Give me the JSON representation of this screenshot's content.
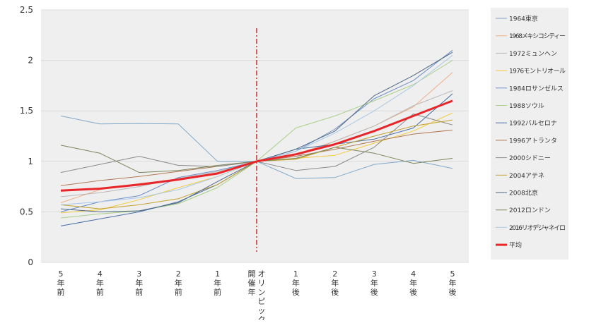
{
  "chart_data": {
    "type": "line",
    "title": "",
    "xlabel": "",
    "ylabel": "",
    "ylim": [
      0,
      2.5
    ],
    "yticks": [
      0,
      0.5,
      1,
      1.5,
      2,
      2.5
    ],
    "ytick_labels": [
      "0",
      "0.5",
      "1",
      "1.5",
      "2",
      "2.5"
    ],
    "categories": [
      "5年前",
      "4年前",
      "3年前",
      "2年前",
      "1年前",
      "開催年",
      "1年後",
      "2年後",
      "3年後",
      "4年後",
      "5年後"
    ],
    "event_marker": {
      "category_index": 5,
      "label": "オリンピック",
      "color": "#c00000"
    },
    "legend_position": "right",
    "grid": true,
    "series": [
      {
        "name": "1964東京",
        "color": "#7fa7c9",
        "width": 1,
        "values": [
          1.45,
          1.37,
          1.375,
          1.37,
          1.0,
          1.0,
          0.83,
          0.84,
          0.97,
          1.01,
          0.93
        ]
      },
      {
        "name": "1968メキシコシティー",
        "color": "#f0b088",
        "width": 1,
        "values": [
          0.59,
          0.72,
          0.78,
          0.82,
          0.89,
          1.0,
          1.07,
          1.2,
          1.35,
          1.54,
          1.88
        ]
      },
      {
        "name": "1972ミュンヘン",
        "color": "#b8b8b8",
        "width": 1,
        "values": [
          0.65,
          0.69,
          0.75,
          0.83,
          0.9,
          1.0,
          1.05,
          1.2,
          1.35,
          1.55,
          1.7
        ]
      },
      {
        "name": "1976モントリオール",
        "color": "#f2cb3c",
        "width": 1,
        "values": [
          0.49,
          0.52,
          0.62,
          0.74,
          0.85,
          1.0,
          1.03,
          1.06,
          1.18,
          1.3,
          1.48
        ]
      },
      {
        "name": "1984ロサンゼルス",
        "color": "#6d8fc7",
        "width": 1,
        "values": [
          0.5,
          0.6,
          0.66,
          0.84,
          0.91,
          1.0,
          1.1,
          1.32,
          1.62,
          1.8,
          2.1
        ]
      },
      {
        "name": "1988ソウル",
        "color": "#a9cf8a",
        "width": 1,
        "values": [
          0.44,
          0.48,
          0.51,
          0.58,
          0.74,
          1.0,
          1.33,
          1.45,
          1.6,
          1.76,
          2.0
        ]
      },
      {
        "name": "1992バルセロナ",
        "color": "#4a6fa5",
        "width": 1,
        "values": [
          0.36,
          0.43,
          0.5,
          0.6,
          0.77,
          1.0,
          1.12,
          1.17,
          1.22,
          1.33,
          1.67
        ]
      },
      {
        "name": "1996アトランタ",
        "color": "#b07a55",
        "width": 1,
        "values": [
          0.76,
          0.81,
          0.85,
          0.9,
          0.95,
          1.0,
          1.05,
          1.12,
          1.2,
          1.27,
          1.31
        ]
      },
      {
        "name": "2000シドニー",
        "color": "#8a8a8a",
        "width": 1,
        "values": [
          0.89,
          0.97,
          1.05,
          0.96,
          0.95,
          1.0,
          0.91,
          0.95,
          1.14,
          1.47,
          1.36
        ]
      },
      {
        "name": "2004アテネ",
        "color": "#c4a12a",
        "width": 1,
        "values": [
          0.57,
          0.53,
          0.57,
          0.63,
          0.77,
          1.0,
          1.02,
          1.14,
          1.25,
          1.35,
          1.41
        ]
      },
      {
        "name": "2008北京",
        "color": "#4e6985",
        "width": 1,
        "values": [
          0.53,
          0.5,
          0.51,
          0.59,
          0.8,
          1.0,
          1.12,
          1.3,
          1.65,
          1.85,
          2.08
        ]
      },
      {
        "name": "2012ロンドン",
        "color": "#7a8458",
        "width": 1,
        "values": [
          1.16,
          1.08,
          0.89,
          0.91,
          0.96,
          1.0,
          1.03,
          1.14,
          1.08,
          0.98,
          1.03
        ]
      },
      {
        "name": "2016リオデジャネイロ",
        "color": "#aac8e6",
        "width": 1,
        "values": [
          0.57,
          0.6,
          0.64,
          0.72,
          0.85,
          1.0,
          1.1,
          1.28,
          1.5,
          1.75,
          2.05
        ]
      },
      {
        "name": "平均",
        "color": "#e8262a",
        "width": 3,
        "values": [
          0.71,
          0.73,
          0.77,
          0.82,
          0.88,
          1.0,
          1.07,
          1.17,
          1.3,
          1.45,
          1.6
        ]
      }
    ]
  }
}
